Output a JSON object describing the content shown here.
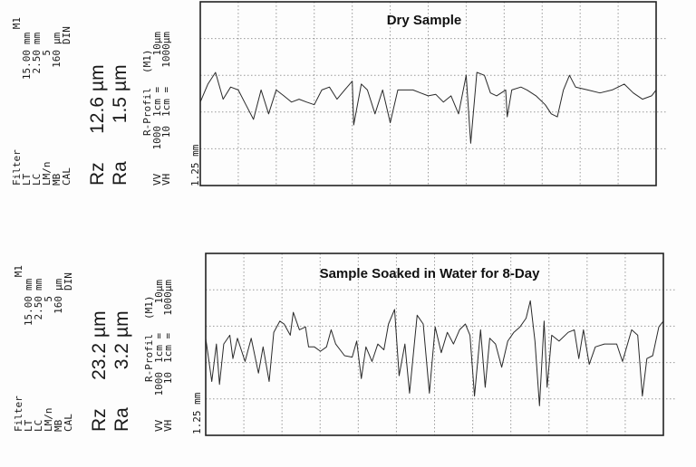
{
  "panels": [
    {
      "params": [
        {
          "label": "Filter",
          "value": "M1"
        },
        {
          "label": "LT",
          "num": "15.00",
          "unit": "mm"
        },
        {
          "label": "LC",
          "num": "2.50",
          "unit": "mm"
        },
        {
          "label": "LM/n",
          "num": "5",
          "unit": ""
        },
        {
          "label": "MB",
          "num": "160",
          "unit": "µm"
        },
        {
          "label": "CAL",
          "num": "",
          "unit": "DIN"
        }
      ],
      "rz": {
        "label": "Rz",
        "value": "12.6",
        "unit": "µm"
      },
      "ra": {
        "label": "Ra",
        "value": "1.5",
        "unit": "µm"
      },
      "profile": {
        "name": "R-Profil",
        "filter": "(M1)",
        "vv": {
          "label": "VV",
          "mag": "1000",
          "scale": "1cm =",
          "unit": "10µm"
        },
        "vh": {
          "label": "VH",
          "mag": "10",
          "scale": "1cm =",
          "unit": "1000µm"
        }
      },
      "x_scale_label": "1.25 mm"
    },
    {
      "params": [
        {
          "label": "Filter",
          "value": "M1"
        },
        {
          "label": "LT",
          "num": "15.00",
          "unit": "mm"
        },
        {
          "label": "LC",
          "num": "2.50",
          "unit": "mm"
        },
        {
          "label": "LM/n",
          "num": "5",
          "unit": ""
        },
        {
          "label": "MB",
          "num": "160",
          "unit": "µm"
        },
        {
          "label": "CAL",
          "num": "",
          "unit": "DIN"
        }
      ],
      "rz": {
        "label": "Rz",
        "value": "23.2",
        "unit": "µm"
      },
      "ra": {
        "label": "Ra",
        "value": "3.2",
        "unit": "µm"
      },
      "profile": {
        "name": "R-Profil",
        "filter": "(M1)",
        "vv": {
          "label": "VV",
          "mag": "1000",
          "scale": "1cm =",
          "unit": "10µm"
        },
        "vh": {
          "label": "VH",
          "mag": "10",
          "scale": "1cm =",
          "unit": "1000µm"
        }
      },
      "x_scale_label": "1.25 mm"
    }
  ],
  "chart_data": [
    {
      "type": "line",
      "title": "Dry Sample",
      "xlabel": "",
      "ylabel": "",
      "xlim": [
        0,
        15
      ],
      "ylim": [
        -25,
        25
      ],
      "x_grid_step": 1.25,
      "y_grid": [
        -15,
        -5,
        5,
        15
      ],
      "grid": "dotted",
      "line_color": "#2a2a2a",
      "x": [
        0,
        0.25,
        0.5,
        0.75,
        1.0,
        1.25,
        1.5,
        1.75,
        2.0,
        2.25,
        2.5,
        2.75,
        3.0,
        3.25,
        3.5,
        3.75,
        4.0,
        4.25,
        4.5,
        4.75,
        5.0,
        5.05,
        5.3,
        5.5,
        5.75,
        6.0,
        6.25,
        6.5,
        6.75,
        7.0,
        7.25,
        7.5,
        7.75,
        8.0,
        8.25,
        8.5,
        8.75,
        8.9,
        9.1,
        9.35,
        9.55,
        9.75,
        10.05,
        10.1,
        10.25,
        10.55,
        10.75,
        11.05,
        11.35,
        11.55,
        11.75,
        11.95,
        12.15,
        12.35,
        12.75,
        13.15,
        13.55,
        13.95,
        14.25,
        14.55,
        14.85,
        15.0
      ],
      "y": [
        -2.3,
        2.6,
        5.8,
        -1.5,
        1.8,
        1.0,
        -3.0,
        -7.0,
        1.0,
        -5.5,
        1.0,
        -0.6,
        -2.3,
        -1.5,
        -2.3,
        -3.0,
        1.0,
        1.8,
        -1.5,
        1.0,
        3.4,
        -8.5,
        2.6,
        1.0,
        -5.5,
        1.0,
        -7.9,
        1.0,
        1.0,
        1.0,
        0.2,
        -0.6,
        -0.2,
        -2.3,
        -0.6,
        -5.5,
        5.0,
        -13.5,
        5.8,
        5.0,
        0.2,
        -0.6,
        1.0,
        -6.3,
        1.0,
        1.8,
        1.0,
        -0.6,
        -3.0,
        -5.5,
        -6.3,
        1.0,
        5.0,
        1.8,
        1.0,
        0.2,
        1.0,
        2.6,
        0.2,
        -1.5,
        -0.6,
        1.0
      ]
    },
    {
      "type": "line",
      "title": "Sample Soaked in Water for 8-Day",
      "xlabel": "",
      "ylabel": "",
      "xlim": [
        0,
        15
      ],
      "ylim": [
        -25,
        25
      ],
      "x_grid_step": 1.25,
      "y_grid": [
        -15,
        -5,
        5,
        15
      ],
      "grid": "dotted",
      "line_color": "#2a2a2a",
      "x": [
        0,
        0.2,
        0.35,
        0.45,
        0.59,
        0.79,
        0.89,
        1.04,
        1.29,
        1.49,
        1.73,
        1.88,
        2.08,
        2.23,
        2.43,
        2.57,
        2.77,
        2.87,
        3.07,
        3.27,
        3.37,
        3.56,
        3.76,
        3.96,
        4.11,
        4.26,
        4.55,
        4.8,
        4.95,
        5.1,
        5.25,
        5.45,
        5.64,
        5.84,
        5.99,
        6.19,
        6.34,
        6.53,
        6.68,
        6.93,
        7.13,
        7.33,
        7.52,
        7.72,
        7.92,
        8.12,
        8.32,
        8.51,
        8.66,
        8.81,
        9.01,
        9.16,
        9.31,
        9.5,
        9.7,
        9.9,
        10.1,
        10.3,
        10.5,
        10.64,
        10.79,
        10.94,
        11.09,
        11.19,
        11.34,
        11.58,
        11.88,
        12.08,
        12.23,
        12.38,
        12.57,
        12.77,
        13.07,
        13.47,
        13.66,
        13.96,
        14.16,
        14.31,
        14.46,
        14.65,
        14.85,
        15.0
      ],
      "y": [
        1.7,
        -10.2,
        0.1,
        -11.0,
        0.1,
        2.5,
        -3.9,
        1.7,
        -4.7,
        1.7,
        -7.9,
        -0.7,
        -10.2,
        3.3,
        6.4,
        5.6,
        2.5,
        8.8,
        4.0,
        4.8,
        -0.7,
        -0.7,
        -1.9,
        -0.7,
        4.0,
        0.1,
        -3.1,
        -3.5,
        0.9,
        -9.4,
        -0.7,
        -4.7,
        0.1,
        -1.5,
        5.6,
        9.6,
        -8.6,
        0.1,
        -13.4,
        8.0,
        5.6,
        -13.4,
        4.8,
        -2.3,
        3.3,
        0.1,
        4.0,
        5.6,
        2.5,
        -14.2,
        4.0,
        -11.8,
        1.7,
        0.1,
        -6.3,
        0.9,
        3.3,
        4.8,
        7.2,
        12.0,
        0.9,
        -16.9,
        6.4,
        -11.8,
        2.5,
        0.9,
        3.3,
        4.0,
        -3.9,
        4.0,
        -5.5,
        -0.7,
        0.1,
        0.1,
        -4.7,
        4.0,
        2.5,
        -14.2,
        -3.9,
        -3.1,
        4.8,
        6.4
      ]
    }
  ]
}
